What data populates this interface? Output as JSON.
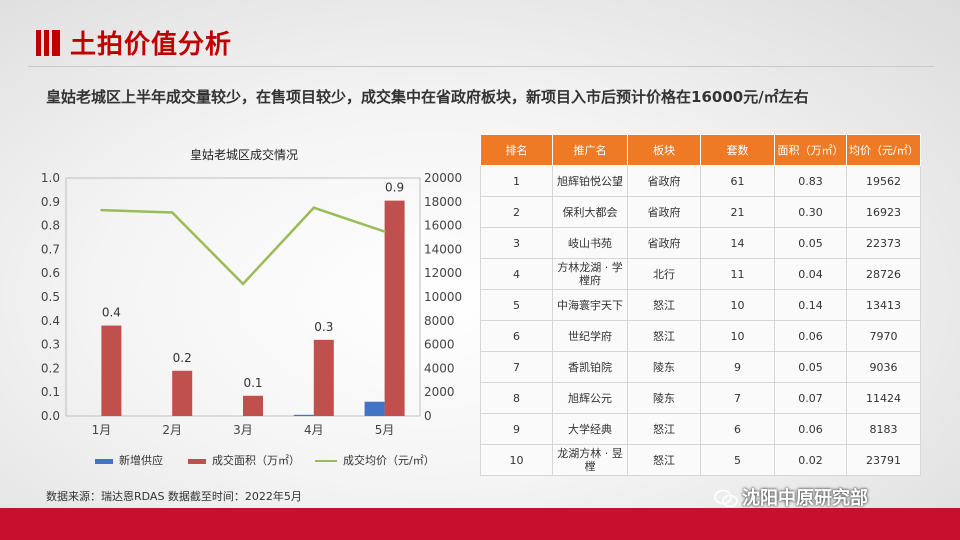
{
  "header": {
    "title": "土拍价值分析"
  },
  "subtitle": "皇姑老城区上半年成交量较少，在售项目较少，成交集中在省政府板块，新项目入市后预计价格在16000元/㎡左右",
  "colors": {
    "supply": "#4472c4",
    "area": "#c0504d",
    "price": "#9bbb59",
    "accent": "#c8102e",
    "table_header": "#ef7a26"
  },
  "chart_data": {
    "type": "bar",
    "title": "皇姑老城区成交情况",
    "categories": [
      "1月",
      "2月",
      "3月",
      "4月",
      "5月"
    ],
    "left_axis": {
      "ylim": [
        0,
        1.0
      ],
      "ticks": [
        "0.0",
        "0.1",
        "0.2",
        "0.3",
        "0.4",
        "0.5",
        "0.6",
        "0.7",
        "0.8",
        "0.9",
        "1.0"
      ]
    },
    "right_axis": {
      "ylim": [
        0,
        20000
      ],
      "ticks": [
        "0",
        "2000",
        "4000",
        "6000",
        "8000",
        "10000",
        "12000",
        "14000",
        "16000",
        "18000",
        "20000"
      ]
    },
    "series": [
      {
        "name": "新增供应",
        "type": "bar",
        "axis": "left",
        "values": [
          0,
          0,
          0,
          0.005,
          0.06
        ],
        "labels": [
          "",
          "",
          "",
          "",
          ""
        ]
      },
      {
        "name": "成交面积（万㎡）",
        "type": "bar",
        "axis": "left",
        "values": [
          0.38,
          0.19,
          0.085,
          0.32,
          0.905
        ],
        "labels": [
          "0.4",
          "0.2",
          "0.1",
          "0.3",
          "0.9"
        ]
      },
      {
        "name": "成交均价（元/㎡）",
        "type": "line",
        "axis": "right",
        "values": [
          17300,
          17100,
          11100,
          17500,
          15500
        ],
        "labels": [
          "",
          "",
          "",
          "",
          ""
        ]
      }
    ]
  },
  "table": {
    "headers": [
      "排名",
      "推广名",
      "板块",
      "套数",
      "面积（万㎡）",
      "均价（元/㎡）"
    ],
    "rows": [
      [
        "1",
        "旭辉铂悦公望",
        "省政府",
        "61",
        "0.83",
        "19562"
      ],
      [
        "2",
        "保利大都会",
        "省政府",
        "21",
        "0.30",
        "16923"
      ],
      [
        "3",
        "岐山书苑",
        "省政府",
        "14",
        "0.05",
        "22373"
      ],
      [
        "4",
        "方林龙湖 · 学樘府",
        "北行",
        "11",
        "0.04",
        "28726"
      ],
      [
        "5",
        "中海寰宇天下",
        "怒江",
        "10",
        "0.14",
        "13413"
      ],
      [
        "6",
        "世纪学府",
        "怒江",
        "10",
        "0.06",
        "7970"
      ],
      [
        "7",
        "香凯铂院",
        "陵东",
        "9",
        "0.05",
        "9036"
      ],
      [
        "8",
        "旭辉公元",
        "陵东",
        "7",
        "0.07",
        "11424"
      ],
      [
        "9",
        "大学经典",
        "怒江",
        "6",
        "0.06",
        "8183"
      ],
      [
        "10",
        "龙湖方林 · 昱樘",
        "怒江",
        "5",
        "0.02",
        "23791"
      ]
    ]
  },
  "footer": {
    "source": "数据来源：瑞达恩RDAS   数据截至时间：2022年5月",
    "brand": "沈阳中原研究部"
  }
}
